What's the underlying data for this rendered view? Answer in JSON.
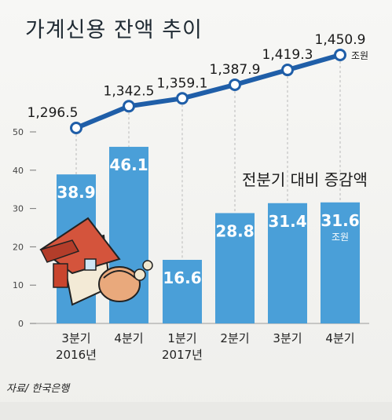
{
  "title": "가계신용 잔액 추이",
  "source": "자료/ 한국은행",
  "line_unit": "조원",
  "bar_unit": "조원",
  "bar_series_label": "전분기 대비 증감액",
  "colors": {
    "bar": "#4a9fd8",
    "line": "#1f5ea8",
    "axis": "#777777"
  },
  "chart_data": {
    "type": "bar",
    "categories": [
      "3분기",
      "4분기",
      "1분기",
      "2분기",
      "3분기",
      "4분기"
    ],
    "year_labels": [
      "2016년",
      "",
      "2017년",
      "",
      "",
      ""
    ],
    "ylim": [
      0,
      50
    ],
    "yticks": [
      0,
      10,
      20,
      30,
      40,
      50
    ],
    "series": [
      {
        "name": "전분기 대비 증감액",
        "type": "bar",
        "values": [
          38.9,
          46.1,
          16.6,
          28.8,
          31.4,
          31.6
        ],
        "labels": [
          "38.9",
          "46.1",
          "16.6",
          "28.8",
          "31.4",
          "31.6"
        ]
      },
      {
        "name": "가계신용 잔액",
        "type": "line",
        "values": [
          1296.5,
          1342.5,
          1359.1,
          1387.9,
          1419.3,
          1450.9
        ],
        "labels": [
          "1,296.5",
          "1,342.5",
          "1,359.1",
          "1,387.9",
          "1,419.3",
          "1,450.9"
        ]
      }
    ]
  }
}
